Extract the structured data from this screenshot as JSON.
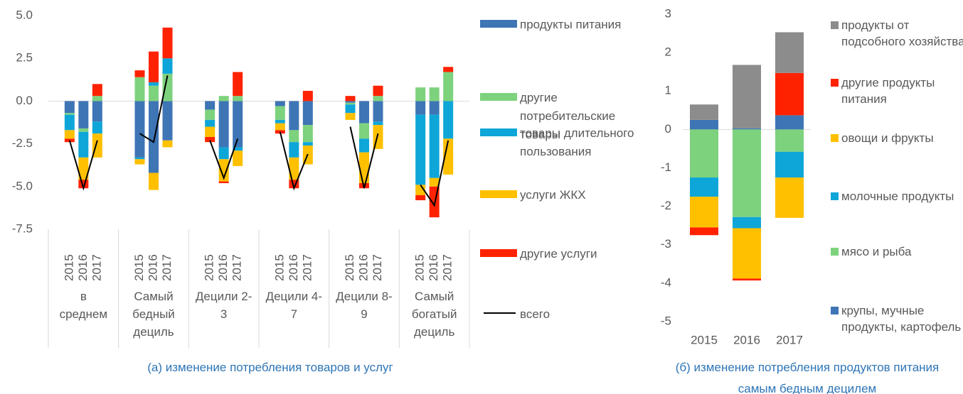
{
  "chart_data": [
    {
      "type": "bar",
      "stacked": true,
      "zero_line": true,
      "caption": "(а) изменение потребления товаров и услуг",
      "groups": [
        "в среднем",
        "Самый бедный дециль",
        "Децили 2-3",
        "Децили 4-7",
        "Децили 8-9",
        "Самый богатый дециль"
      ],
      "categories": [
        "2015",
        "2016",
        "2017",
        "2015",
        "2016",
        "2017",
        "2015",
        "2016",
        "2017",
        "2015",
        "2016",
        "2017",
        "2015",
        "2016",
        "2017",
        "2015",
        "2016",
        "2017"
      ],
      "ylim": [
        -7.5,
        5
      ],
      "yticks": [
        -7.5,
        {
          "value": -5,
          "label": "-5.0"
        },
        -2.5,
        {
          "value": 0,
          "label": "0.0"
        },
        2.5,
        {
          "value": 5,
          "label": "5.0"
        }
      ],
      "series": [
        {
          "name": "продукты питания",
          "color": "#3e75b5",
          "values": [
            -0.7,
            -1.6,
            -1.2,
            -3.3,
            -4.2,
            -2.3,
            -0.5,
            -2.7,
            -2.7,
            -0.3,
            -1.7,
            -1.4,
            -0.1,
            -1.3,
            -1.2,
            -0.8,
            -0.8,
            0
          ]
        },
        {
          "name": "другие потребительские товары",
          "color": "#7dd27d",
          "values": [
            -0.1,
            -0.2,
            0.3,
            1.4,
            0.9,
            1.6,
            -0.6,
            0.3,
            0.3,
            -0.8,
            -0.7,
            -1.0,
            -0.1,
            -0.9,
            0.3,
            0.8,
            0.8,
            1.7
          ]
        },
        {
          "name": "товары длительного пользования",
          "color": "#0ea6d8",
          "values": [
            -0.9,
            -1.5,
            -0.7,
            -0.1,
            0.2,
            0.9,
            -0.4,
            -0.7,
            -0.2,
            -0.2,
            -0.9,
            -0.2,
            -0.5,
            -0.8,
            -0.2,
            -4.1,
            -3.7,
            -2.2
          ]
        },
        {
          "name": "услуги ЖКХ",
          "color": "#ffc000",
          "values": [
            -0.5,
            -1.3,
            -1.4,
            -0.3,
            -1.0,
            -0.4,
            -0.6,
            -1.3,
            -0.9,
            -0.4,
            -1.3,
            -1.1,
            -0.4,
            -1.8,
            -1.4,
            -0.6,
            -0.5,
            -2.1
          ]
        },
        {
          "name": "другие услуги",
          "color": "#ff2200",
          "values": [
            -0.2,
            -0.5,
            0.7,
            0.4,
            1.8,
            1.8,
            -0.3,
            -0.1,
            1.4,
            -0.2,
            -0.5,
            0.6,
            0.3,
            -0.3,
            0.6,
            -0.3,
            -1.8,
            0.3
          ]
        },
        {
          "name": "всего",
          "type": "line",
          "color": "#000000",
          "values": [
            -2.3,
            -5.1,
            -2.3,
            -1.9,
            -2.4,
            1.5,
            -2.3,
            -4.5,
            -2.2,
            -1.8,
            -5.1,
            -3.1,
            -1.5,
            -5.1,
            -1.9,
            -4.9,
            -6.1,
            -2.3
          ]
        }
      ]
    },
    {
      "type": "bar",
      "stacked": true,
      "zero_line": true,
      "legend_order": "reverse",
      "caption": "(б) изменение потребления продуктов питания самым бедным децилем",
      "categories": [
        "2015",
        "2016",
        "2017"
      ],
      "ylim": [
        -5,
        3
      ],
      "yticks": [
        -5,
        -4,
        -3,
        -2,
        -1,
        0,
        1,
        2,
        3
      ],
      "series": [
        {
          "name": "крупы, мучные продукты, картофель",
          "color": "#3e75b5",
          "values": [
            0.25,
            0.03,
            0.37
          ]
        },
        {
          "name": "мясо и рыба",
          "color": "#7dd27d",
          "values": [
            -1.25,
            -2.28,
            -0.58
          ]
        },
        {
          "name": "молочные продукты",
          "color": "#0ea6d8",
          "values": [
            -0.5,
            -0.29,
            -0.67
          ]
        },
        {
          "name": "овощи и фрукты",
          "color": "#ffc000",
          "values": [
            -0.8,
            -1.31,
            -1.05
          ]
        },
        {
          "name": "другие продукты питания",
          "color": "#ff2200",
          "values": [
            -0.2,
            -0.05,
            1.1
          ]
        },
        {
          "name": "продукты от подсобного хозяйства",
          "color": "#8c8c8c",
          "values": [
            0.4,
            1.65,
            1.06
          ]
        }
      ]
    }
  ]
}
